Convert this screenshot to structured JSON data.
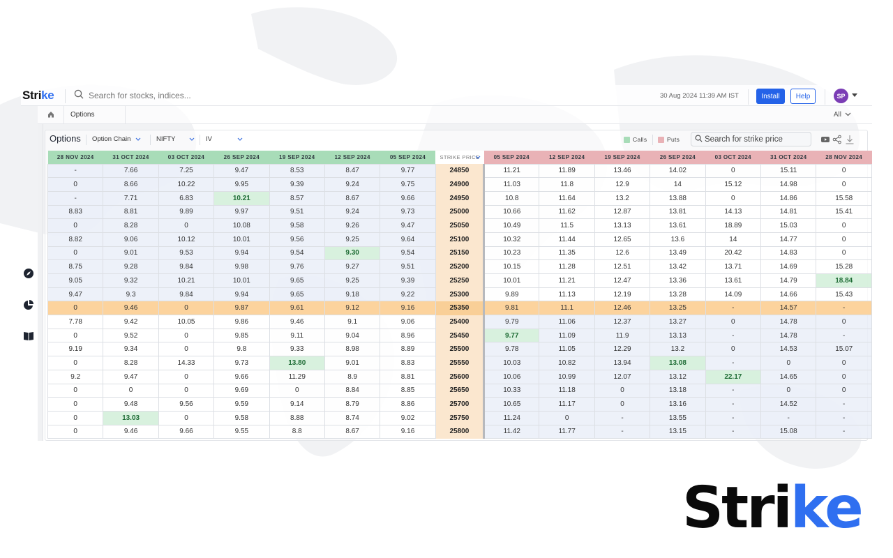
{
  "app": {
    "logo_text_main": "Stri",
    "logo_text_accent": "ke",
    "search_placeholder": "Search for stocks, indices...",
    "datetime": "30 Aug 2024 11:39 AM IST",
    "install_label": "Install",
    "help_label": "Help",
    "avatar_initials": "SP"
  },
  "tabs": {
    "home_icon": "home-icon",
    "active_tab": "Options",
    "filter_label": "All"
  },
  "sidebar": {
    "icons": [
      "compass-icon",
      "pie-chart-icon",
      "book-icon"
    ]
  },
  "toolbar": {
    "title": "Options",
    "view_select": "Option Chain",
    "symbol_select": "NIFTY",
    "metric_select": "IV",
    "legend_calls": "Calls",
    "legend_puts": "Puts",
    "strike_search_placeholder": "Search for strike price",
    "colors": {
      "calls": "#a8dcb8",
      "puts": "#e9b2b6",
      "atm": "#fcd39d",
      "strike_col": "#fbe7cf",
      "highlight": "#d6f0dc"
    }
  },
  "chain": {
    "call_headers": [
      "28 NOV 2024",
      "31 OCT 2024",
      "03 OCT 2024",
      "26 SEP 2024",
      "19 SEP 2024",
      "12 SEP 2024",
      "05 SEP 2024"
    ],
    "strike_header": "STRIKE PRICE",
    "put_headers": [
      "05 SEP 2024",
      "12 SEP 2024",
      "19 SEP 2024",
      "26 SEP 2024",
      "03 OCT 2024",
      "31 OCT 2024",
      "28 NOV 2024"
    ],
    "atm_strike": "25350",
    "rows": [
      {
        "strike": "24850",
        "calls": [
          "-",
          "7.66",
          "7.25",
          "9.47",
          "8.53",
          "8.47",
          "9.77"
        ],
        "puts": [
          "11.21",
          "11.89",
          "13.46",
          "14.02",
          "0",
          "15.11",
          "0"
        ]
      },
      {
        "strike": "24900",
        "calls": [
          "0",
          "8.66",
          "10.22",
          "9.95",
          "9.39",
          "9.24",
          "9.75"
        ],
        "puts": [
          "11.03",
          "11.8",
          "12.9",
          "14",
          "15.12",
          "14.98",
          "0"
        ]
      },
      {
        "strike": "24950",
        "calls": [
          "-",
          "7.71",
          "6.83",
          "10.21",
          "8.57",
          "8.67",
          "9.66"
        ],
        "puts": [
          "10.8",
          "11.64",
          "13.2",
          "13.88",
          "0",
          "14.86",
          "15.58"
        ]
      },
      {
        "strike": "25000",
        "calls": [
          "8.83",
          "8.81",
          "9.89",
          "9.97",
          "9.51",
          "9.24",
          "9.73"
        ],
        "puts": [
          "10.66",
          "11.62",
          "12.87",
          "13.81",
          "14.13",
          "14.81",
          "15.41"
        ]
      },
      {
        "strike": "25050",
        "calls": [
          "0",
          "8.28",
          "0",
          "10.08",
          "9.58",
          "9.26",
          "9.47"
        ],
        "puts": [
          "10.49",
          "11.5",
          "13.13",
          "13.61",
          "18.89",
          "15.03",
          "0"
        ]
      },
      {
        "strike": "25100",
        "calls": [
          "8.82",
          "9.06",
          "10.12",
          "10.01",
          "9.56",
          "9.25",
          "9.64"
        ],
        "puts": [
          "10.32",
          "11.44",
          "12.65",
          "13.6",
          "14",
          "14.77",
          "0"
        ]
      },
      {
        "strike": "25150",
        "calls": [
          "0",
          "9.01",
          "9.53",
          "9.94",
          "9.54",
          "9.30",
          "9.54"
        ],
        "puts": [
          "10.23",
          "11.35",
          "12.6",
          "13.49",
          "20.42",
          "14.83",
          "0"
        ]
      },
      {
        "strike": "25200",
        "calls": [
          "8.75",
          "9.28",
          "9.84",
          "9.98",
          "9.76",
          "9.27",
          "9.51"
        ],
        "puts": [
          "10.15",
          "11.28",
          "12.51",
          "13.42",
          "13.71",
          "14.69",
          "15.28"
        ]
      },
      {
        "strike": "25250",
        "calls": [
          "9.05",
          "9.32",
          "10.21",
          "10.01",
          "9.65",
          "9.25",
          "9.39"
        ],
        "puts": [
          "10.01",
          "11.21",
          "12.47",
          "13.36",
          "13.61",
          "14.79",
          "18.84"
        ]
      },
      {
        "strike": "25300",
        "calls": [
          "9.47",
          "9.3",
          "9.84",
          "9.94",
          "9.65",
          "9.18",
          "9.22"
        ],
        "puts": [
          "9.89",
          "11.13",
          "12.19",
          "13.28",
          "14.09",
          "14.66",
          "15.43"
        ]
      },
      {
        "strike": "25350",
        "calls": [
          "0",
          "9.46",
          "0",
          "9.87",
          "9.61",
          "9.12",
          "9.16"
        ],
        "puts": [
          "9.81",
          "11.1",
          "12.46",
          "13.25",
          "-",
          "14.57",
          "-"
        ]
      },
      {
        "strike": "25400",
        "calls": [
          "7.78",
          "9.42",
          "10.05",
          "9.86",
          "9.46",
          "9.1",
          "9.06"
        ],
        "puts": [
          "9.79",
          "11.06",
          "12.37",
          "13.27",
          "0",
          "14.78",
          "0"
        ]
      },
      {
        "strike": "25450",
        "calls": [
          "0",
          "9.52",
          "0",
          "9.85",
          "9.11",
          "9.04",
          "8.96"
        ],
        "puts": [
          "9.77",
          "11.09",
          "11.9",
          "13.13",
          "-",
          "14.78",
          "-"
        ]
      },
      {
        "strike": "25500",
        "calls": [
          "9.19",
          "9.34",
          "0",
          "9.8",
          "9.33",
          "8.98",
          "8.89"
        ],
        "puts": [
          "9.78",
          "11.05",
          "12.29",
          "13.2",
          "0",
          "14.53",
          "15.07"
        ]
      },
      {
        "strike": "25550",
        "calls": [
          "0",
          "8.28",
          "14.33",
          "9.73",
          "13.80",
          "9.01",
          "8.83"
        ],
        "puts": [
          "10.03",
          "10.82",
          "13.94",
          "13.08",
          "-",
          "0",
          "0"
        ]
      },
      {
        "strike": "25600",
        "calls": [
          "9.2",
          "9.47",
          "0",
          "9.66",
          "11.29",
          "8.9",
          "8.81"
        ],
        "puts": [
          "10.06",
          "10.99",
          "12.07",
          "13.12",
          "22.17",
          "14.65",
          "0"
        ]
      },
      {
        "strike": "25650",
        "calls": [
          "0",
          "0",
          "0",
          "9.69",
          "0",
          "8.84",
          "8.85"
        ],
        "puts": [
          "10.33",
          "11.18",
          "0",
          "13.18",
          "-",
          "0",
          "0"
        ]
      },
      {
        "strike": "25700",
        "calls": [
          "0",
          "9.48",
          "9.56",
          "9.59",
          "9.14",
          "8.79",
          "8.86"
        ],
        "puts": [
          "10.65",
          "11.17",
          "0",
          "13.16",
          "-",
          "14.52",
          "-"
        ]
      },
      {
        "strike": "25750",
        "calls": [
          "0",
          "13.03",
          "0",
          "9.58",
          "8.88",
          "8.74",
          "9.02"
        ],
        "puts": [
          "11.24",
          "0",
          "-",
          "13.55",
          "-",
          "-",
          "-"
        ]
      },
      {
        "strike": "25800",
        "calls": [
          "0",
          "9.46",
          "9.66",
          "9.55",
          "8.8",
          "8.67",
          "9.16"
        ],
        "puts": [
          "11.42",
          "11.77",
          "-",
          "13.15",
          "-",
          "15.08",
          "-"
        ]
      }
    ],
    "highlights": [
      {
        "strike": "24950",
        "side": "calls",
        "col": 3
      },
      {
        "strike": "25150",
        "side": "calls",
        "col": 5
      },
      {
        "strike": "25550",
        "side": "calls",
        "col": 4
      },
      {
        "strike": "25750",
        "side": "calls",
        "col": 1
      },
      {
        "strike": "25250",
        "side": "puts",
        "col": 6
      },
      {
        "strike": "25450",
        "side": "puts",
        "col": 0
      },
      {
        "strike": "25550",
        "side": "puts",
        "col": 3
      },
      {
        "strike": "25600",
        "side": "puts",
        "col": 4
      }
    ]
  },
  "brand": {
    "big_logo_main": "Stri",
    "big_logo_accent": "ke"
  }
}
